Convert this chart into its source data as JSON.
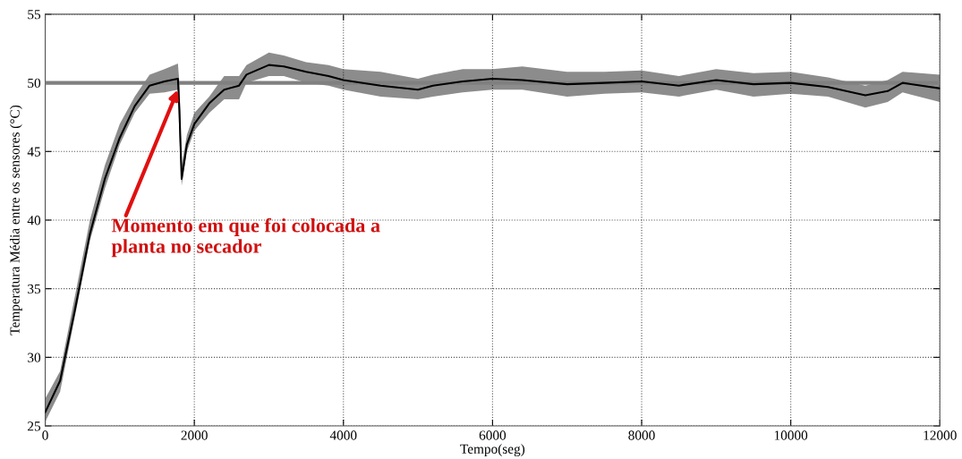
{
  "chart_data": {
    "type": "line",
    "xlabel": "Tempo(seg)",
    "ylabel": "Temperatura Média entre os sensores (°C)",
    "x": [
      0,
      200,
      400,
      600,
      800,
      1000,
      1200,
      1400,
      1600,
      1780,
      1800,
      1830,
      1900,
      2000,
      2200,
      2400,
      2600,
      2700,
      3000,
      3200,
      3500,
      3800,
      4000,
      4500,
      5000,
      5200,
      5600,
      6000,
      6400,
      7000,
      7500,
      8000,
      8500,
      9000,
      9500,
      10000,
      10500,
      11000,
      11300,
      11500,
      12000
    ],
    "series": [
      {
        "color": "#000000",
        "values": [
          26,
          28.3,
          33.5,
          39,
          43,
          46,
          48.3,
          49.8,
          50.1,
          50.3,
          48,
          43,
          45.5,
          47,
          48.5,
          49.5,
          49.8,
          50.6,
          51.3,
          51.2,
          50.8,
          50.5,
          50.2,
          49.8,
          49.5,
          49.8,
          50.1,
          50.3,
          50.2,
          49.9,
          50,
          50.1,
          49.8,
          50.2,
          49.9,
          50,
          49.7,
          49.1,
          49.4,
          50,
          49.6
        ],
        "lower": [
          25.3,
          27.5,
          33,
          38.5,
          42.3,
          45.5,
          47.8,
          49.2,
          49.3,
          49.5,
          46,
          42.5,
          45,
          46.5,
          47.8,
          48.8,
          48.8,
          50,
          50.5,
          50.5,
          50,
          49.8,
          49.5,
          49,
          48.8,
          49,
          49.3,
          49.5,
          49.5,
          49,
          49.2,
          49.3,
          49,
          49.5,
          49,
          49.2,
          49,
          48.2,
          48.6,
          49.3,
          48.6
        ],
        "upper": [
          27,
          29,
          34.5,
          40,
          44,
          47,
          49,
          50.6,
          51,
          51.4,
          50,
          44,
          46.2,
          47.8,
          49,
          50.5,
          50.5,
          51.3,
          52.2,
          52,
          51.5,
          51.3,
          51,
          50.8,
          50.3,
          50.6,
          51,
          51,
          51.2,
          50.8,
          50.8,
          50.9,
          50.5,
          51,
          50.7,
          50.8,
          50.4,
          49.8,
          50.2,
          50.8,
          50.6
        ]
      }
    ],
    "xlim": [
      0,
      12000
    ],
    "xticks": [
      0,
      2000,
      4000,
      6000,
      8000,
      10000,
      12000
    ],
    "ylim": [
      25,
      55
    ],
    "yticks": [
      25,
      30,
      35,
      40,
      45,
      50,
      55
    ],
    "grid": true,
    "line_style": "solid",
    "ref_lines": [
      {
        "axis": "y",
        "value": 50,
        "color": "#808080",
        "line_style": "solid"
      }
    ],
    "annotations": [
      {
        "text": "Momento em que foi colocada a\nplanta no secador",
        "x": 1780,
        "y": 49.5
      }
    ]
  }
}
